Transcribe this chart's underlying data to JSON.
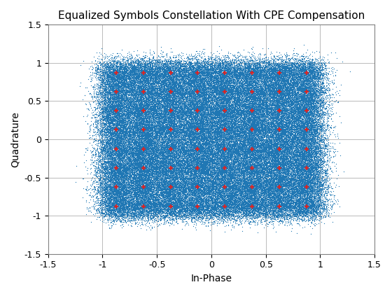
{
  "title": "Equalized Symbols Constellation With CPE Compensation",
  "xlabel": "In-Phase",
  "ylabel": "Quadrature",
  "xlim": [
    -1.5,
    1.5
  ],
  "ylim": [
    -1.5,
    1.5
  ],
  "xticks": [
    -1.5,
    -1.0,
    -0.5,
    0.0,
    0.5,
    1.0,
    1.5
  ],
  "yticks": [
    -1.5,
    -1.0,
    -0.5,
    0.0,
    0.5,
    1.0,
    1.5
  ],
  "xtick_labels": [
    "-1.5",
    "-1",
    "-0.5",
    "0",
    "0.5",
    "1",
    "1.5"
  ],
  "ytick_labels": [
    "-1.5",
    "-1",
    "-0.5",
    "0",
    "0.5",
    "1",
    "1.5"
  ],
  "qam_levels": [
    -0.875,
    -0.625,
    -0.375,
    -0.125,
    0.125,
    0.375,
    0.625,
    0.875
  ],
  "dot_color": "#1f77b4",
  "marker_color": "#d62728",
  "dot_size": 0.8,
  "n_points_per_symbol": 2000,
  "noise_std": 0.095,
  "seed": 42,
  "background_color": "#ffffff",
  "grid_color": "#b0b0b0",
  "grid_linewidth": 0.6,
  "title_fontsize": 11,
  "axis_label_fontsize": 10,
  "tick_fontsize": 9,
  "marker_size": 5,
  "marker_linewidth": 1.5
}
